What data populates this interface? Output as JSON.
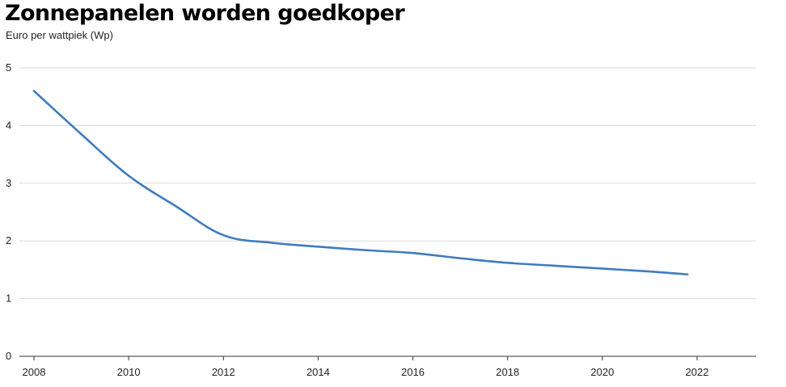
{
  "chart_data": {
    "type": "line",
    "title": "Zonnepanelen worden goedkoper",
    "subtitle": "Euro per wattpiek (Wp)",
    "xlabel": "",
    "ylabel": "",
    "xlim": [
      2008,
      2023.5
    ],
    "ylim": [
      0,
      5
    ],
    "x_ticks": [
      2008,
      2010,
      2012,
      2014,
      2016,
      2018,
      2020,
      2022
    ],
    "y_ticks": [
      0,
      1,
      2,
      3,
      4,
      5
    ],
    "grid": "horizontal",
    "legend": "none",
    "series": [
      {
        "color": "#3e7cbd",
        "x": [
          2008,
          2009,
          2010,
          2011,
          2012,
          2013,
          2014,
          2015,
          2016,
          2017,
          2018,
          2019,
          2020,
          2021,
          2021.8
        ],
        "y": [
          4.6,
          3.85,
          3.13,
          2.6,
          2.1,
          1.97,
          1.9,
          1.84,
          1.79,
          1.7,
          1.62,
          1.57,
          1.52,
          1.47,
          1.42
        ]
      }
    ]
  }
}
